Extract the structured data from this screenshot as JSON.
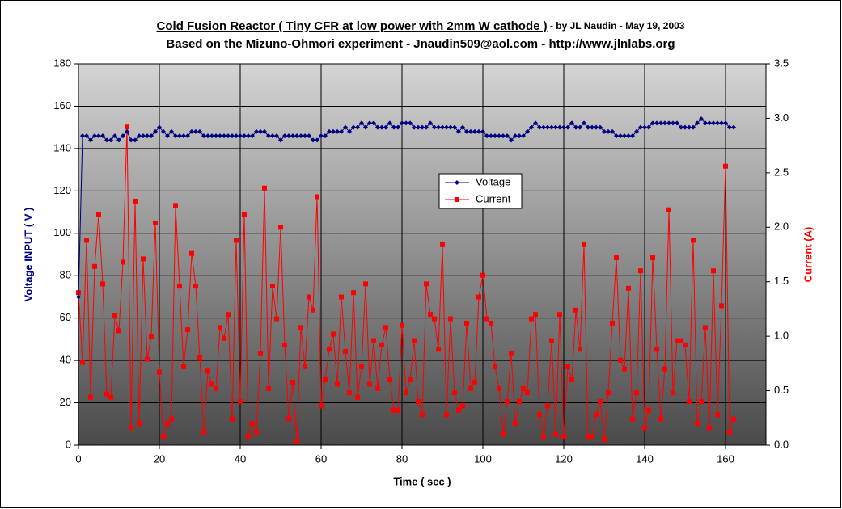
{
  "chart_data": {
    "type": "line",
    "title": "Cold Fusion Reactor ( Tiny CFR at low power with 2mm W cathode )",
    "title_byline": " - by JL Naudin - May 19, 2003",
    "subtitle": "Based on the Mizuno-Ohmori experiment - Jnaudin509@aol.com - http://www.jlnlabs.org",
    "x_label": "Time ( sec )",
    "y_label": "Voltage INPUT ( V )",
    "y2_label": "Current (A)",
    "xlim": [
      0,
      170
    ],
    "xticks": [
      0,
      20,
      40,
      60,
      80,
      100,
      120,
      140,
      160
    ],
    "ylim": [
      0,
      180
    ],
    "yticks": [
      0,
      20,
      40,
      60,
      80,
      100,
      120,
      140,
      160,
      180
    ],
    "y2lim": [
      0,
      3.5
    ],
    "y2ticks": [
      {
        "value": 0,
        "label": "0.0"
      },
      {
        "value": 0.5,
        "label": "0.5"
      },
      {
        "value": 1,
        "label": "1.0"
      },
      {
        "value": 1.5,
        "label": "1.5"
      },
      {
        "value": 2,
        "label": "2.0"
      },
      {
        "value": 2.5,
        "label": "2.5"
      },
      {
        "value": 3,
        "label": "3.0"
      },
      {
        "value": 3.5,
        "label": "3.5"
      }
    ],
    "grid": true,
    "legend": "center",
    "x": [
      0,
      1,
      2,
      3,
      4,
      5,
      6,
      7,
      8,
      9,
      10,
      11,
      12,
      13,
      14,
      15,
      16,
      17,
      18,
      19,
      20,
      21,
      22,
      23,
      24,
      25,
      26,
      27,
      28,
      29,
      30,
      31,
      32,
      33,
      34,
      35,
      36,
      37,
      38,
      39,
      40,
      41,
      42,
      43,
      44,
      45,
      46,
      47,
      48,
      49,
      50,
      51,
      52,
      53,
      54,
      55,
      56,
      57,
      58,
      59,
      60,
      61,
      62,
      63,
      64,
      65,
      66,
      67,
      68,
      69,
      70,
      71,
      72,
      73,
      74,
      75,
      76,
      77,
      78,
      79,
      80,
      81,
      82,
      83,
      84,
      85,
      86,
      87,
      88,
      89,
      90,
      91,
      92,
      93,
      94,
      95,
      96,
      97,
      98,
      99,
      100,
      101,
      102,
      103,
      104,
      105,
      106,
      107,
      108,
      109,
      110,
      111,
      112,
      113,
      114,
      115,
      116,
      117,
      118,
      119,
      120,
      121,
      122,
      123,
      124,
      125,
      126,
      127,
      128,
      129,
      130,
      131,
      132,
      133,
      134,
      135,
      136,
      137,
      138,
      139,
      140,
      141,
      142,
      143,
      144,
      145,
      146,
      147,
      148,
      149,
      150,
      151,
      152,
      153,
      154,
      155,
      156,
      157,
      158,
      159,
      160,
      161,
      162
    ],
    "series": [
      {
        "name": "Voltage",
        "color": "#000080",
        "marker": "diamond",
        "values": [
          70,
          146,
          146,
          144,
          146,
          146,
          146,
          144,
          144,
          146,
          144,
          146,
          148,
          144,
          144,
          146,
          146,
          146,
          146,
          148,
          150,
          148,
          146,
          148,
          146,
          146,
          146,
          146,
          148,
          148,
          148,
          146,
          146,
          146,
          146,
          146,
          146,
          146,
          146,
          146,
          146,
          146,
          146,
          146,
          148,
          148,
          148,
          146,
          146,
          146,
          144,
          146,
          146,
          146,
          146,
          146,
          146,
          146,
          144,
          144,
          146,
          146,
          148,
          148,
          148,
          148,
          150,
          148,
          150,
          150,
          152,
          150,
          152,
          152,
          150,
          150,
          150,
          152,
          150,
          150,
          152,
          152,
          152,
          150,
          150,
          150,
          150,
          152,
          150,
          150,
          150,
          150,
          150,
          150,
          148,
          150,
          148,
          148,
          148,
          148,
          148,
          146,
          146,
          146,
          146,
          146,
          146,
          144,
          146,
          146,
          146,
          148,
          150,
          152,
          150,
          150,
          150,
          150,
          150,
          150,
          150,
          150,
          152,
          150,
          150,
          152,
          150,
          150,
          150,
          150,
          148,
          148,
          148,
          146,
          146,
          146,
          146,
          146,
          148,
          150,
          150,
          150,
          152,
          152,
          152,
          152,
          152,
          152,
          152,
          150,
          150,
          150,
          150,
          152,
          154,
          152,
          152,
          152,
          152,
          152,
          152,
          150,
          150
        ]
      },
      {
        "name": "Current",
        "color": "#ff0000",
        "marker": "square",
        "axis": "y2",
        "values": [
          1.4,
          0.76,
          1.88,
          0.44,
          1.64,
          2.12,
          1.48,
          0.47,
          0.44,
          1.19,
          1.05,
          1.68,
          2.92,
          0.16,
          2.24,
          0.2,
          1.71,
          0.79,
          1.0,
          2.04,
          0.67,
          0.08,
          0.2,
          0.24,
          2.2,
          1.46,
          0.72,
          1.06,
          1.76,
          1.46,
          0.8,
          0.12,
          0.68,
          0.56,
          0.52,
          1.08,
          0.98,
          1.2,
          0.24,
          1.88,
          0.4,
          2.12,
          0.08,
          0.2,
          0.12,
          0.84,
          2.36,
          0.52,
          1.46,
          1.16,
          2.0,
          0.92,
          0.24,
          0.58,
          0.04,
          1.08,
          0.72,
          1.36,
          1.24,
          2.28,
          0.36,
          0.6,
          0.88,
          1.02,
          0.56,
          1.36,
          0.86,
          0.48,
          1.4,
          0.44,
          0.72,
          1.48,
          0.56,
          0.96,
          0.52,
          0.92,
          1.08,
          0.6,
          0.32,
          0.32,
          1.1,
          0.48,
          0.6,
          0.96,
          0.4,
          0.28,
          1.48,
          1.2,
          1.16,
          0.88,
          1.84,
          0.28,
          1.16,
          0.48,
          0.32,
          0.36,
          1.12,
          0.52,
          0.58,
          1.36,
          1.56,
          1.16,
          1.12,
          0.72,
          0.52,
          0.1,
          0.4,
          0.84,
          0.2,
          0.4,
          0.52,
          0.48,
          1.16,
          1.2,
          0.28,
          0.08,
          0.36,
          0.96,
          0.1,
          1.2,
          0.08,
          0.72,
          0.6,
          1.24,
          0.88,
          1.84,
          0.08,
          0.08,
          0.28,
          0.4,
          0.05,
          0.48,
          1.12,
          1.72,
          0.78,
          0.7,
          1.44,
          0.24,
          0.48,
          1.6,
          0.16,
          0.32,
          1.72,
          0.88,
          0.24,
          0.7,
          2.16,
          0.48,
          0.96,
          0.96,
          0.92,
          0.4,
          1.88,
          0.2,
          0.4,
          1.08,
          0.16,
          1.6,
          0.28,
          1.28,
          2.56,
          0.12,
          0.24
        ]
      }
    ]
  }
}
